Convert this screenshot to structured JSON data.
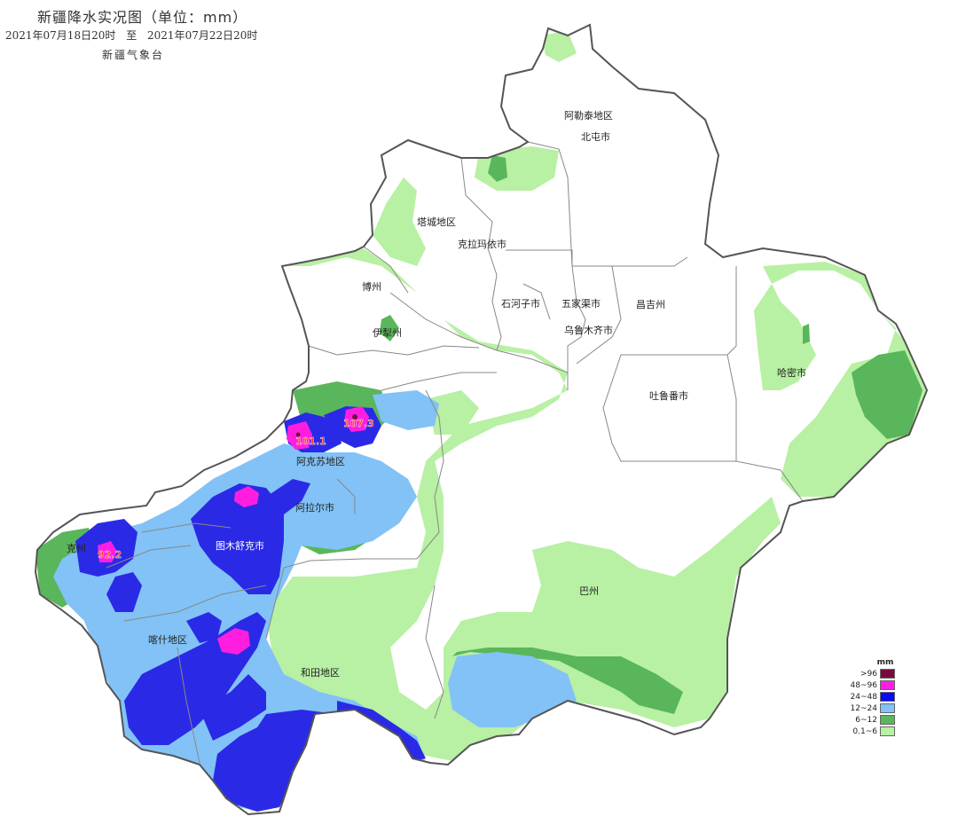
{
  "header": {
    "title": "新疆降水实况图（单位：mm）",
    "start_time": "2021年07月18日20时",
    "separator": "至",
    "end_time": "2021年07月22日20时",
    "source": "新疆气象台"
  },
  "regions": [
    {
      "id": "altay",
      "label": "阿勒泰地区"
    },
    {
      "id": "beitun",
      "label": "北屯市"
    },
    {
      "id": "tacheng",
      "label": "塔城地区"
    },
    {
      "id": "karamay",
      "label": "克拉玛依市"
    },
    {
      "id": "bozhou",
      "label": "博州"
    },
    {
      "id": "shihezi",
      "label": "石河子市"
    },
    {
      "id": "wujiaqu",
      "label": "五家渠市"
    },
    {
      "id": "changji",
      "label": "昌吉州"
    },
    {
      "id": "yili",
      "label": "伊犁州"
    },
    {
      "id": "urumqi",
      "label": "乌鲁木齐市"
    },
    {
      "id": "hami",
      "label": "哈密市"
    },
    {
      "id": "turpan",
      "label": "吐鲁番市"
    },
    {
      "id": "aksu",
      "label": "阿克苏地区"
    },
    {
      "id": "alar",
      "label": "阿拉尔市"
    },
    {
      "id": "kezhou",
      "label": "克州"
    },
    {
      "id": "tumxuk",
      "label": "图木舒克市"
    },
    {
      "id": "bazhou",
      "label": "巴州"
    },
    {
      "id": "kashgar",
      "label": "喀什地区"
    },
    {
      "id": "hotan",
      "label": "和田地区"
    }
  ],
  "max_values": [
    {
      "id": "aksu-max",
      "value": "107.3"
    },
    {
      "id": "wensu-max",
      "value": "101.1"
    },
    {
      "id": "kezhou-max",
      "value": "92.2"
    }
  ],
  "legend": {
    "unit": "mm",
    "items": [
      {
        "label": ">96",
        "color": "#7a0a3c"
      },
      {
        "label": "48~96",
        "color": "#ff1ee0"
      },
      {
        "label": "24~48",
        "color": "#0a0af0"
      },
      {
        "label": "12~24",
        "color": "#82c2f6"
      },
      {
        "label": "6~12",
        "color": "#5ab65a"
      },
      {
        "label": "0.1~6",
        "color": "#b8f0a4"
      }
    ]
  },
  "colors": {
    "border": "#555555",
    "inner_border": "#888888"
  }
}
